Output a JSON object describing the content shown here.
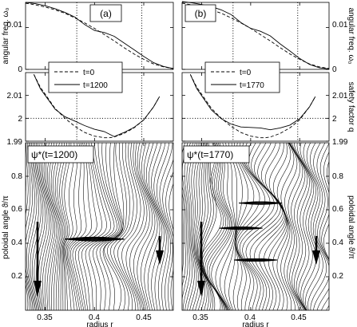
{
  "figure": {
    "x_axis_label": "radius r",
    "y_labels": {
      "freq_left": "angular freq. ω₀",
      "freq_right": "angular freq. ω₀",
      "q_right": "safety factor q",
      "psi_left": "poloidal angle ϑ/π",
      "psi_right": "poloidal angle ϑ/π"
    }
  },
  "chart_data": [
    {
      "type": "line",
      "panel": "(a)",
      "ylabel": "angular freq. ω₀",
      "xlim": [
        0.33,
        0.48
      ],
      "ylim": [
        0,
        0.016
      ],
      "yticks": [
        0,
        0.01
      ],
      "vlines": [
        0.382,
        0.448
      ],
      "series": [
        {
          "name": "t=0",
          "style": "dashed",
          "x": [
            0.33,
            0.34,
            0.35,
            0.36,
            0.37,
            0.38,
            0.39,
            0.4,
            0.41,
            0.42,
            0.43,
            0.44,
            0.45,
            0.46,
            0.47,
            0.48
          ],
          "y": [
            0.0158,
            0.0154,
            0.0149,
            0.0142,
            0.0134,
            0.0123,
            0.0111,
            0.0098,
            0.0083,
            0.0068,
            0.0052,
            0.0037,
            0.0024,
            0.0013,
            0.0006,
            0.0002
          ]
        },
        {
          "name": "t=1200",
          "style": "solid",
          "x": [
            0.33,
            0.34,
            0.35,
            0.36,
            0.37,
            0.38,
            0.39,
            0.4,
            0.41,
            0.42,
            0.43,
            0.44,
            0.45,
            0.46,
            0.47,
            0.48
          ],
          "y": [
            0.016,
            0.0157,
            0.0152,
            0.0145,
            0.0136,
            0.0125,
            0.0107,
            0.0093,
            0.0088,
            0.0079,
            0.0063,
            0.0047,
            0.0031,
            0.0016,
            0.0007,
            0.0002
          ]
        }
      ]
    },
    {
      "type": "line",
      "panel": "(b)",
      "ylabel": "angular freq. ω₀",
      "xlim": [
        0.33,
        0.48
      ],
      "ylim": [
        0,
        0.016
      ],
      "yticks": [
        0,
        0.01
      ],
      "vlines": [
        0.382,
        0.448
      ],
      "series": [
        {
          "name": "t=0",
          "style": "dashed",
          "x": [
            0.33,
            0.34,
            0.35,
            0.36,
            0.37,
            0.38,
            0.39,
            0.4,
            0.41,
            0.42,
            0.43,
            0.44,
            0.45,
            0.46,
            0.47,
            0.48
          ],
          "y": [
            0.0158,
            0.0154,
            0.0149,
            0.0142,
            0.0134,
            0.0123,
            0.0111,
            0.0098,
            0.0083,
            0.0068,
            0.0052,
            0.0037,
            0.0024,
            0.0013,
            0.0006,
            0.0002
          ]
        },
        {
          "name": "t=1770",
          "style": "solid",
          "x": [
            0.33,
            0.34,
            0.35,
            0.36,
            0.37,
            0.38,
            0.39,
            0.4,
            0.41,
            0.42,
            0.43,
            0.44,
            0.45,
            0.46,
            0.47,
            0.48
          ],
          "y": [
            0.0162,
            0.0159,
            0.0155,
            0.015,
            0.0142,
            0.0131,
            0.0112,
            0.0098,
            0.0091,
            0.008,
            0.0061,
            0.0044,
            0.0026,
            0.0012,
            0.0004,
            0.0001
          ]
        }
      ]
    },
    {
      "type": "line",
      "panel": "(a)",
      "ylabel": "safety factor q",
      "xlim": [
        0.33,
        0.48
      ],
      "ylim": [
        1.99,
        2.02
      ],
      "yticks": [
        1.99,
        2,
        2.01
      ],
      "hline": 2,
      "vlines": [
        0.382,
        0.448
      ],
      "series": [
        {
          "name": "t=0",
          "style": "dashed",
          "x": [
            0.3384,
            0.345,
            0.36,
            0.37,
            0.38,
            0.39,
            0.4,
            0.41,
            0.415,
            0.42,
            0.43,
            0.44,
            0.45,
            0.46,
            0.466
          ],
          "y": [
            2.0192,
            2.0136,
            2.0043,
            2.0,
            1.9965,
            1.9938,
            1.9922,
            1.9915,
            1.9915,
            1.9918,
            1.9934,
            1.9958,
            1.9993,
            2.005,
            2.0095
          ]
        },
        {
          "name": "t=1200",
          "style": "solid",
          "x": [
            0.3384,
            0.345,
            0.36,
            0.37,
            0.38,
            0.39,
            0.4,
            0.41,
            0.42,
            0.43,
            0.44,
            0.45,
            0.46,
            0.466
          ],
          "y": [
            2.0192,
            2.013,
            2.004,
            2.0007,
            1.9988,
            1.9968,
            1.9952,
            1.9942,
            1.992,
            1.9938,
            1.996,
            1.9993,
            2.005,
            2.0095
          ]
        }
      ]
    },
    {
      "type": "line",
      "panel": "(b)",
      "ylabel": "safety factor q",
      "xlim": [
        0.33,
        0.48
      ],
      "ylim": [
        1.99,
        2.02
      ],
      "yticks": [
        1.99,
        2,
        2.01
      ],
      "hline": 2,
      "vlines": [
        0.382,
        0.448
      ],
      "series": [
        {
          "name": "t=0",
          "style": "dashed",
          "x": [
            0.3384,
            0.345,
            0.36,
            0.37,
            0.38,
            0.39,
            0.4,
            0.41,
            0.415,
            0.42,
            0.43,
            0.44,
            0.45,
            0.46,
            0.466
          ],
          "y": [
            2.0192,
            2.0136,
            2.0043,
            2.0,
            1.9965,
            1.9938,
            1.9922,
            1.9915,
            1.9915,
            1.9918,
            1.9934,
            1.9958,
            1.9993,
            2.005,
            2.0095
          ]
        },
        {
          "name": "t=1770",
          "style": "solid",
          "x": [
            0.3384,
            0.345,
            0.36,
            0.37,
            0.38,
            0.39,
            0.4,
            0.41,
            0.42,
            0.43,
            0.44,
            0.45,
            0.46,
            0.466
          ],
          "y": [
            2.0192,
            2.013,
            2.0036,
            1.9998,
            1.9975,
            1.9962,
            1.996,
            1.9958,
            1.995,
            1.9958,
            1.997,
            1.9998,
            2.005,
            2.0095
          ]
        }
      ]
    },
    {
      "type": "heatmap",
      "panel": "(a)",
      "title": "ψ*(t=1200)",
      "xlabel": "radius r",
      "ylabel": "poloidal angle ϑ/π",
      "xlim": [
        0.33,
        0.48
      ],
      "ylim": [
        0,
        1
      ],
      "xticks": [
        0.35,
        0.4,
        0.45
      ],
      "yticks": [
        0.2,
        0.4,
        0.6,
        0.8
      ]
    },
    {
      "type": "heatmap",
      "panel": "(b)",
      "title": "ψ*(t=1770)",
      "xlabel": "radius r",
      "ylabel": "poloidal angle ϑ/π",
      "xlim": [
        0.33,
        0.48
      ],
      "ylim": [
        0,
        1
      ],
      "xticks": [
        0.35,
        0.4,
        0.45
      ],
      "yticks": [
        0.2,
        0.4,
        0.6,
        0.8
      ]
    }
  ]
}
